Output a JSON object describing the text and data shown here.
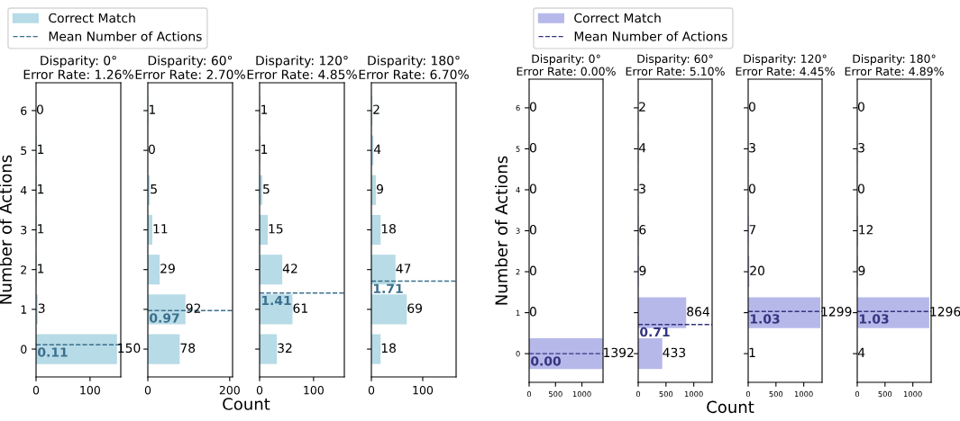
{
  "chart_data": [
    {
      "type": "bar",
      "orientation": "horizontal",
      "title": "Disparity: 0°\nError Rate: 1.26%",
      "ylabel": "Number of Actions",
      "x": [
        0,
        1,
        2,
        3,
        4,
        5,
        6
      ],
      "series": [
        {
          "name": "Correct Match",
          "color": "#b7dbe7",
          "values": [
            150,
            3,
            1,
            1,
            1,
            1,
            0
          ]
        }
      ],
      "data_labels": true,
      "xlim": [
        0,
        157
      ],
      "xticks": [
        0,
        100
      ],
      "ylim": [
        -0.7,
        6.7
      ],
      "yticks": [
        0,
        1,
        2,
        3,
        4,
        5,
        6
      ],
      "ref_lines": [
        {
          "axis": "y",
          "value": 0.11,
          "label": "Mean Number of Actions",
          "color": "#3b6f8c",
          "line_style": "dashed"
        }
      ],
      "annotations": [
        {
          "text": "0.11",
          "y": 0.11
        }
      ],
      "legend": "top"
    },
    {
      "type": "bar",
      "orientation": "horizontal",
      "title": "Disparity: 60°\nError Rate: 2.70%",
      "xlabel": "Count",
      "x": [
        0,
        1,
        2,
        3,
        4,
        5,
        6
      ],
      "series": [
        {
          "color": "#b7dbe7",
          "values": [
            78,
            92,
            29,
            11,
            5,
            0,
            1
          ]
        }
      ],
      "data_labels": true,
      "xlim": [
        0,
        207
      ],
      "xticks": [
        0,
        200
      ],
      "ylim": [
        -0.7,
        6.7
      ],
      "yticks": [
        0,
        1,
        2,
        3,
        4,
        5,
        6
      ],
      "tick_labels": "x",
      "ref_lines": [
        {
          "axis": "y",
          "value": 0.97,
          "color": "#3b6f8c",
          "line_style": "dashed"
        }
      ],
      "annotations": [
        {
          "text": "0.97",
          "y": 0.97
        }
      ]
    },
    {
      "type": "bar",
      "orientation": "horizontal",
      "title": "Disparity: 120°\nError Rate: 4.85%",
      "x": [
        0,
        1,
        2,
        3,
        4,
        5,
        6
      ],
      "series": [
        {
          "color": "#b7dbe7",
          "values": [
            32,
            61,
            42,
            15,
            5,
            1,
            1
          ]
        }
      ],
      "data_labels": true,
      "xlim": [
        0,
        157
      ],
      "xticks": [
        0,
        100
      ],
      "ylim": [
        -0.7,
        6.7
      ],
      "yticks": [
        0,
        1,
        2,
        3,
        4,
        5,
        6
      ],
      "tick_labels": "x",
      "ref_lines": [
        {
          "axis": "y",
          "value": 1.41,
          "color": "#3b6f8c",
          "line_style": "dashed"
        }
      ],
      "annotations": [
        {
          "text": "1.41",
          "y": 1.41
        }
      ]
    },
    {
      "type": "bar",
      "orientation": "horizontal",
      "title": "Disparity: 180°\nError Rate: 6.70%",
      "x": [
        0,
        1,
        2,
        3,
        4,
        5,
        6
      ],
      "series": [
        {
          "color": "#b7dbe7",
          "values": [
            18,
            69,
            47,
            18,
            9,
            4,
            2
          ]
        }
      ],
      "data_labels": true,
      "xlim": [
        0,
        165
      ],
      "xticks": [
        0,
        100
      ],
      "ylim": [
        -0.7,
        6.7
      ],
      "yticks": [
        0,
        1,
        2,
        3,
        4,
        5,
        6
      ],
      "tick_labels": "x",
      "ref_lines": [
        {
          "axis": "y",
          "value": 1.71,
          "color": "#3b6f8c",
          "line_style": "dashed"
        }
      ],
      "annotations": [
        {
          "text": "1.71",
          "y": 1.71
        }
      ]
    },
    {
      "type": "bar",
      "orientation": "horizontal",
      "title": "Disparity: 0°\nError Rate: 0.00%",
      "ylabel": "Number of Actions",
      "x": [
        0,
        1,
        2,
        3,
        4,
        5,
        6
      ],
      "series": [
        {
          "name": "Correct Match",
          "color": "#b7b8ea",
          "values": [
            1392,
            0,
            0,
            0,
            0,
            0,
            0
          ]
        }
      ],
      "data_labels": true,
      "xlim": [
        0,
        1400
      ],
      "xticks": [
        0,
        500,
        1000
      ],
      "ylim": [
        -0.7,
        6.7
      ],
      "yticks": [
        0,
        1,
        2,
        3,
        4,
        5,
        6
      ],
      "ref_lines": [
        {
          "axis": "y",
          "value": 0.0,
          "label": "Mean Number of Actions",
          "color": "#34347f",
          "line_style": "dashed"
        }
      ],
      "annotations": [
        {
          "text": "0.00",
          "y": 0.0
        }
      ],
      "legend": "top"
    },
    {
      "type": "bar",
      "orientation": "horizontal",
      "title": "Disparity: 60°\nError Rate: 5.10%",
      "xlabel": "Count",
      "x": [
        0,
        1,
        2,
        3,
        4,
        5,
        6
      ],
      "series": [
        {
          "color": "#b7b8ea",
          "values": [
            433,
            864,
            9,
            6,
            3,
            4,
            2
          ]
        }
      ],
      "data_labels": true,
      "xlim": [
        0,
        1330
      ],
      "xticks": [
        0,
        500,
        1000
      ],
      "ylim": [
        -0.7,
        6.7
      ],
      "yticks": [
        0,
        1,
        2,
        3,
        4,
        5,
        6
      ],
      "tick_labels": "x",
      "ref_lines": [
        {
          "axis": "y",
          "value": 0.71,
          "color": "#34347f",
          "line_style": "dashed"
        }
      ],
      "annotations": [
        {
          "text": "0.71",
          "y": 0.71
        }
      ]
    },
    {
      "type": "bar",
      "orientation": "horizontal",
      "title": "Disparity: 120°\nError Rate: 4.45%",
      "x": [
        0,
        1,
        2,
        3,
        4,
        5,
        6
      ],
      "series": [
        {
          "color": "#b7b8ea",
          "values": [
            1,
            1299,
            20,
            7,
            0,
            3,
            0
          ]
        }
      ],
      "data_labels": true,
      "xlim": [
        0,
        1330
      ],
      "xticks": [
        0,
        500,
        1000
      ],
      "ylim": [
        -0.7,
        6.7
      ],
      "yticks": [
        0,
        1,
        2,
        3,
        4,
        5,
        6
      ],
      "tick_labels": "x",
      "ref_lines": [
        {
          "axis": "y",
          "value": 1.03,
          "color": "#34347f",
          "line_style": "dashed"
        }
      ],
      "annotations": [
        {
          "text": "1.03",
          "y": 1.03
        }
      ]
    },
    {
      "type": "bar",
      "orientation": "horizontal",
      "title": "Disparity: 180°\nError Rate: 4.89%",
      "x": [
        0,
        1,
        2,
        3,
        4,
        5,
        6
      ],
      "series": [
        {
          "color": "#b7b8ea",
          "values": [
            4,
            1296,
            9,
            12,
            0,
            3,
            0
          ]
        }
      ],
      "data_labels": true,
      "xlim": [
        0,
        1330
      ],
      "xticks": [
        0,
        500,
        1000
      ],
      "ylim": [
        -0.7,
        6.7
      ],
      "yticks": [
        0,
        1,
        2,
        3,
        4,
        5,
        6
      ],
      "tick_labels": "x",
      "ref_lines": [
        {
          "axis": "y",
          "value": 1.03,
          "color": "#34347f",
          "line_style": "dashed"
        }
      ],
      "annotations": [
        {
          "text": "1.03",
          "y": 1.03
        }
      ]
    }
  ]
}
